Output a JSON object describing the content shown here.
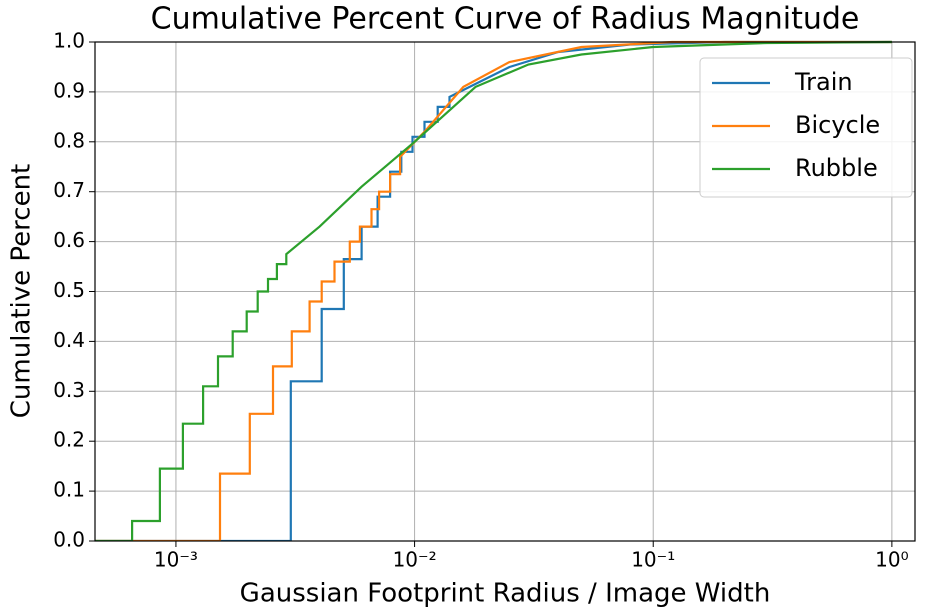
{
  "chart_data": {
    "type": "line",
    "title": "Cumulative Percent Curve of Radius Magnitude",
    "x_label": "Gaussian Footprint Radius / Image Width",
    "y_label": "Cumulative Percent",
    "x_scale": "log",
    "xlim": [
      0.000458,
      1.25
    ],
    "xticks": [
      {
        "value": 0.001,
        "label": "10⁻³"
      },
      {
        "value": 0.01,
        "label": "10⁻²"
      },
      {
        "value": 0.1,
        "label": "10⁻¹"
      },
      {
        "value": 1,
        "label": "10⁰"
      }
    ],
    "ylim": [
      0,
      1
    ],
    "yticks": [
      {
        "value": 0,
        "label": "0.0"
      },
      0.1,
      0.2,
      0.3,
      0.4,
      0.5,
      0.6,
      0.7,
      0.8,
      0.9,
      {
        "value": 1,
        "label": "1.0"
      }
    ],
    "grid": true,
    "legend": "upper right",
    "series": [
      {
        "name": "Train",
        "color": "#1f77b4",
        "x": [
          0.000458,
          0.00303,
          0.00303,
          0.00408,
          0.00408,
          0.00505,
          0.00505,
          0.006,
          0.006,
          0.007,
          0.007,
          0.0079,
          0.0079,
          0.0088,
          0.0088,
          0.0098,
          0.0098,
          0.011,
          0.011,
          0.0125,
          0.0125,
          0.014,
          0.014,
          0.017,
          0.025,
          0.04,
          0.08,
          0.2,
          1
        ],
        "values": [
          0,
          0,
          0.32,
          0.32,
          0.465,
          0.465,
          0.565,
          0.565,
          0.63,
          0.63,
          0.69,
          0.69,
          0.74,
          0.74,
          0.78,
          0.78,
          0.81,
          0.81,
          0.84,
          0.84,
          0.87,
          0.87,
          0.89,
          0.91,
          0.95,
          0.98,
          0.995,
          1,
          1
        ]
      },
      {
        "name": "Bicycle",
        "color": "#ff7f0e",
        "x": [
          0.000458,
          0.00153,
          0.00153,
          0.00204,
          0.00204,
          0.00255,
          0.00255,
          0.00306,
          0.00306,
          0.00363,
          0.00363,
          0.00408,
          0.00408,
          0.00462,
          0.00462,
          0.00535,
          0.00535,
          0.0059,
          0.0059,
          0.0066,
          0.0066,
          0.0071,
          0.0071,
          0.0079,
          0.0079,
          0.0087,
          0.0087,
          0.011,
          0.016,
          0.025,
          0.05,
          0.12,
          1
        ],
        "values": [
          0,
          0,
          0.135,
          0.135,
          0.255,
          0.255,
          0.35,
          0.35,
          0.42,
          0.42,
          0.48,
          0.48,
          0.52,
          0.52,
          0.56,
          0.56,
          0.6,
          0.6,
          0.63,
          0.63,
          0.665,
          0.665,
          0.7,
          0.7,
          0.735,
          0.735,
          0.77,
          0.82,
          0.91,
          0.96,
          0.99,
          1,
          1
        ]
      },
      {
        "name": "Rubble",
        "color": "#2ca02c",
        "x": [
          0.000458,
          0.000655,
          0.000655,
          0.000857,
          0.000857,
          0.00107,
          0.00107,
          0.0013,
          0.0013,
          0.0015,
          0.0015,
          0.00173,
          0.00173,
          0.00198,
          0.00198,
          0.0022,
          0.0022,
          0.00243,
          0.00243,
          0.00265,
          0.00265,
          0.0029,
          0.0029,
          0.004,
          0.006,
          0.01,
          0.018,
          0.03,
          0.05,
          0.1,
          0.3,
          1
        ],
        "values": [
          0,
          0,
          0.04,
          0.04,
          0.145,
          0.145,
          0.235,
          0.235,
          0.31,
          0.31,
          0.37,
          0.37,
          0.42,
          0.42,
          0.46,
          0.46,
          0.5,
          0.5,
          0.525,
          0.525,
          0.555,
          0.555,
          0.575,
          0.63,
          0.71,
          0.8,
          0.91,
          0.955,
          0.975,
          0.99,
          0.998,
          1
        ]
      }
    ]
  }
}
